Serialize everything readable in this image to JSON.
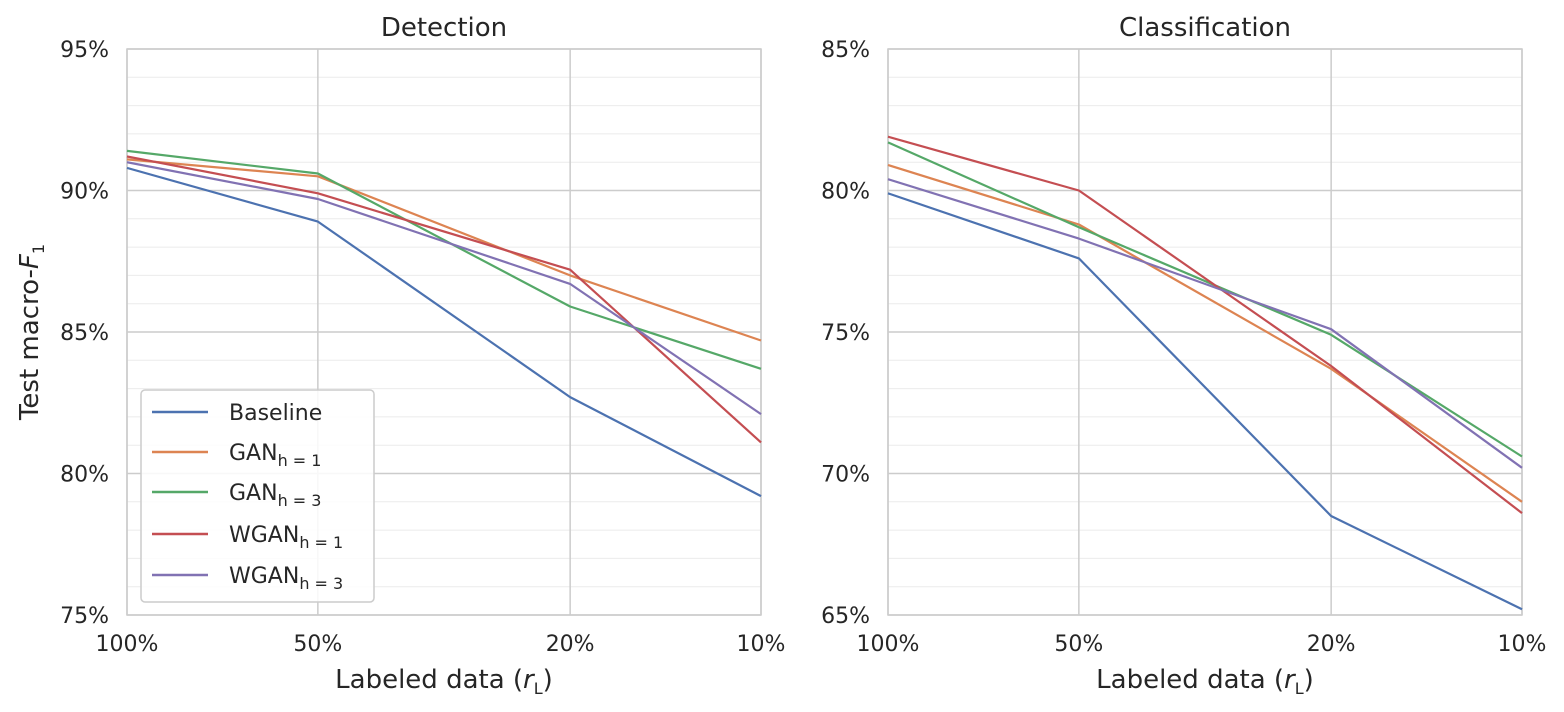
{
  "chart_data": [
    {
      "type": "line",
      "title": "Detection",
      "xlabel": "Labeled data (r_L)",
      "ylabel": "Test macro-F_1",
      "categories": [
        "100%",
        "50%",
        "20%",
        "10%"
      ],
      "x_positions": [
        100,
        50,
        20,
        10
      ],
      "x_scale": "log, reversed",
      "yticks": [
        "75%",
        "80%",
        "85%",
        "90%",
        "95%"
      ],
      "ylim": [
        75,
        95
      ],
      "grid": true,
      "legend": "lower-left",
      "series": [
        {
          "name": "Baseline",
          "color": "#4c72b0",
          "values": [
            90.8,
            88.9,
            82.7,
            79.2
          ]
        },
        {
          "name": "GAN_{h=1}",
          "color": "#dd8452",
          "values": [
            91.1,
            90.5,
            87.0,
            84.7
          ]
        },
        {
          "name": "GAN_{h=3}",
          "color": "#55a868",
          "values": [
            91.4,
            90.6,
            85.9,
            83.7
          ]
        },
        {
          "name": "WGAN_{h=1}",
          "color": "#c44e52",
          "values": [
            91.2,
            89.9,
            87.2,
            81.1
          ]
        },
        {
          "name": "WGAN_{h=3}",
          "color": "#8172b3",
          "values": [
            91.0,
            89.7,
            86.7,
            82.1
          ]
        }
      ]
    },
    {
      "type": "line",
      "title": "Classification",
      "xlabel": "Labeled data (r_L)",
      "ylabel": "",
      "categories": [
        "100%",
        "50%",
        "20%",
        "10%"
      ],
      "x_positions": [
        100,
        50,
        20,
        10
      ],
      "x_scale": "log, reversed",
      "yticks": [
        "65%",
        "70%",
        "75%",
        "80%",
        "85%"
      ],
      "ylim": [
        65,
        85
      ],
      "grid": true,
      "legend": "",
      "series": [
        {
          "name": "Baseline",
          "color": "#4c72b0",
          "values": [
            79.9,
            77.6,
            68.5,
            65.2
          ]
        },
        {
          "name": "GAN_{h=1}",
          "color": "#dd8452",
          "values": [
            80.9,
            78.8,
            73.7,
            69.0
          ]
        },
        {
          "name": "GAN_{h=3}",
          "color": "#55a868",
          "values": [
            81.7,
            78.7,
            74.9,
            70.6
          ]
        },
        {
          "name": "WGAN_{h=1}",
          "color": "#c44e52",
          "values": [
            81.9,
            80.0,
            73.8,
            68.6
          ]
        },
        {
          "name": "WGAN_{h=3}",
          "color": "#8172b3",
          "values": [
            80.4,
            78.3,
            75.1,
            70.2
          ]
        }
      ]
    }
  ],
  "legend": {
    "entries": [
      {
        "base": "Baseline",
        "sub": ""
      },
      {
        "base": "GAN",
        "sub": "h = 1"
      },
      {
        "base": "GAN",
        "sub": "h = 3"
      },
      {
        "base": "WGAN",
        "sub": "h = 1"
      },
      {
        "base": "WGAN",
        "sub": "h = 3"
      }
    ]
  },
  "labels": {
    "left_title": "Detection",
    "right_title": "Classification",
    "xlabel_base": "Labeled data (",
    "xlabel_var": "r",
    "xlabel_sub": "L",
    "xlabel_close": ")",
    "ylabel_base": "Test macro-",
    "ylabel_var": "F",
    "ylabel_sub": "1"
  }
}
